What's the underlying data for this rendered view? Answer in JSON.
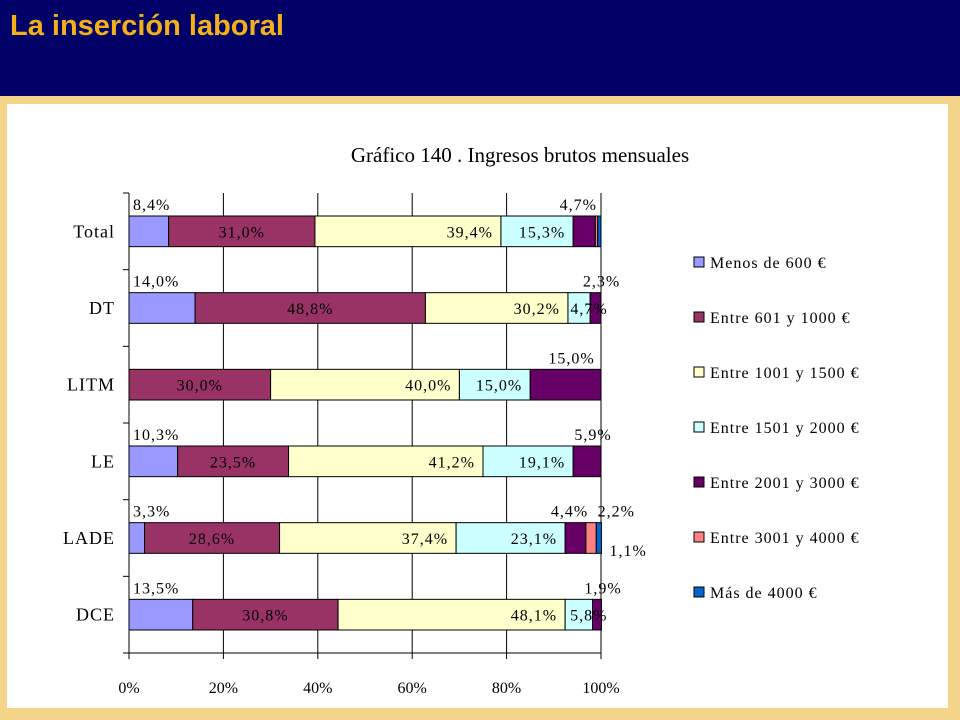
{
  "slide": {
    "title": "La inserción laboral"
  },
  "chart_data": {
    "type": "bar",
    "orientation": "horizontal",
    "stacked": "percent",
    "title": "Gráfico 140 . Ingresos brutos mensuales",
    "categories": [
      "Total",
      "DT",
      "LITM",
      "LE",
      "LADE",
      "DCE"
    ],
    "x_ticks": [
      "0%",
      "20%",
      "40%",
      "60%",
      "80%",
      "100%"
    ],
    "xlim": [
      0,
      100
    ],
    "grid": true,
    "legend_position": "right",
    "series": [
      {
        "name": "Menos de 600 €",
        "color": "#9999ff",
        "values": [
          8.4,
          14.0,
          0,
          10.3,
          3.3,
          13.5
        ],
        "labels": [
          "8,4%",
          "14,0%",
          "",
          "10,3%",
          "3,3%",
          "13,5%"
        ]
      },
      {
        "name": "Entre 601 y 1000 €",
        "color": "#993366",
        "values": [
          31.0,
          48.8,
          30.0,
          23.5,
          28.6,
          30.8
        ],
        "labels": [
          "31,0%",
          "48,8%",
          "30,0%",
          "23,5%",
          "28,6%",
          "30,8%"
        ]
      },
      {
        "name": "Entre 1001 y 1500 €",
        "color": "#ffffcc",
        "values": [
          39.4,
          30.2,
          40.0,
          41.2,
          37.4,
          48.1
        ],
        "labels": [
          "39,4%",
          "30,2%",
          "40,0%",
          "41,2%",
          "37,4%",
          "48,1%"
        ]
      },
      {
        "name": "Entre 1501 y 2000 €",
        "color": "#ccffff",
        "values": [
          15.3,
          4.7,
          15.0,
          19.1,
          23.1,
          5.8
        ],
        "labels": [
          "15,3%",
          "4,7%",
          "15,0%",
          "19,1%",
          "23,1%",
          "5,8%"
        ]
      },
      {
        "name": "Entre 2001 y 3000 €",
        "color": "#660066",
        "values": [
          4.7,
          2.3,
          15.0,
          5.9,
          4.4,
          1.9
        ],
        "labels": [
          "4,7%",
          "2,3%",
          "15,0%",
          "5,9%",
          "4,4%",
          "1,9%"
        ]
      },
      {
        "name": "Entre 3001 y 4000 €",
        "color": "#ff8080",
        "values": [
          0.5,
          0,
          0,
          0,
          2.2,
          0
        ],
        "labels": [
          "",
          "",
          "",
          "",
          "2,2%",
          ""
        ]
      },
      {
        "name": "Más de 4000 €",
        "color": "#0066cc",
        "values": [
          0.7,
          0,
          0,
          0,
          1.1,
          0
        ],
        "labels": [
          "",
          "",
          "",
          "",
          "1,1%",
          ""
        ]
      }
    ]
  }
}
